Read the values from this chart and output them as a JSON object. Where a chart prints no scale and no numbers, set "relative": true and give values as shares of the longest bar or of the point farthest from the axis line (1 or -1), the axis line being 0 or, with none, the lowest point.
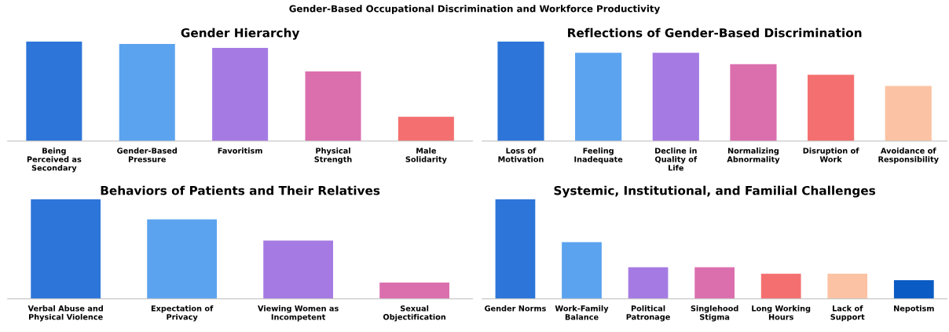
{
  "chart_data": [
    {
      "type": "bar",
      "title": "Gender Hierarchy",
      "relative": true,
      "categories": [
        "Being Perceived as Secondary",
        "Gender-Based Pressure",
        "Favoritism",
        "Physical Strength",
        "Male Solidarity"
      ],
      "values": [
        1,
        0.976,
        0.935,
        0.699,
        0.244
      ],
      "colors": [
        "#2e75d9",
        "#5ba3ef",
        "#a57be3",
        "#db6fae",
        "#f47070"
      ],
      "annotations": [
        "Gender-Based Occupational Discrimination and Workforce Productivity"
      ]
    },
    {
      "type": "bar",
      "title": "Reflections of Gender-Based Discrimination",
      "relative": true,
      "categories": [
        "Loss of Motivation",
        "Feeling Inadequate",
        "Decline in Quality of Life",
        "Normalizing Abnormality",
        "Disruption of Work",
        "Avoidance of Responsibility"
      ],
      "values": [
        1,
        0.886,
        0.886,
        0.772,
        0.667,
        0.553
      ],
      "colors": [
        "#2e75d9",
        "#5ba3ef",
        "#a57be3",
        "#db6fae",
        "#f47070",
        "#fbc3a3"
      ]
    },
    {
      "type": "bar",
      "title": "Behaviors of Patients and Their Relatives",
      "relative": true,
      "categories": [
        "Verbal Abuse and Physical Violence",
        "Expectation of Privacy",
        "Viewing Women as Incompetent",
        "Sexual Objectification"
      ],
      "values": [
        1,
        0.797,
        0.585,
        0.163
      ],
      "colors": [
        "#2e75d9",
        "#5ba3ef",
        "#a57be3",
        "#db6fae"
      ]
    },
    {
      "type": "bar",
      "title": "Systemic, Institutional, and Familial Challenges",
      "relative": true,
      "categories": [
        "Gender Norms",
        "Work-Family Balance",
        "Political Patronage",
        "Singlehood Stigma",
        "Long Working Hours",
        "Lack of Support",
        "Nepotism"
      ],
      "values": [
        1,
        0.569,
        0.317,
        0.317,
        0.252,
        0.252,
        0.187
      ],
      "colors": [
        "#2e75d9",
        "#5ba3ef",
        "#a57be3",
        "#db6fae",
        "#f47070",
        "#fbc3a3",
        "#0a5bc4"
      ]
    }
  ]
}
